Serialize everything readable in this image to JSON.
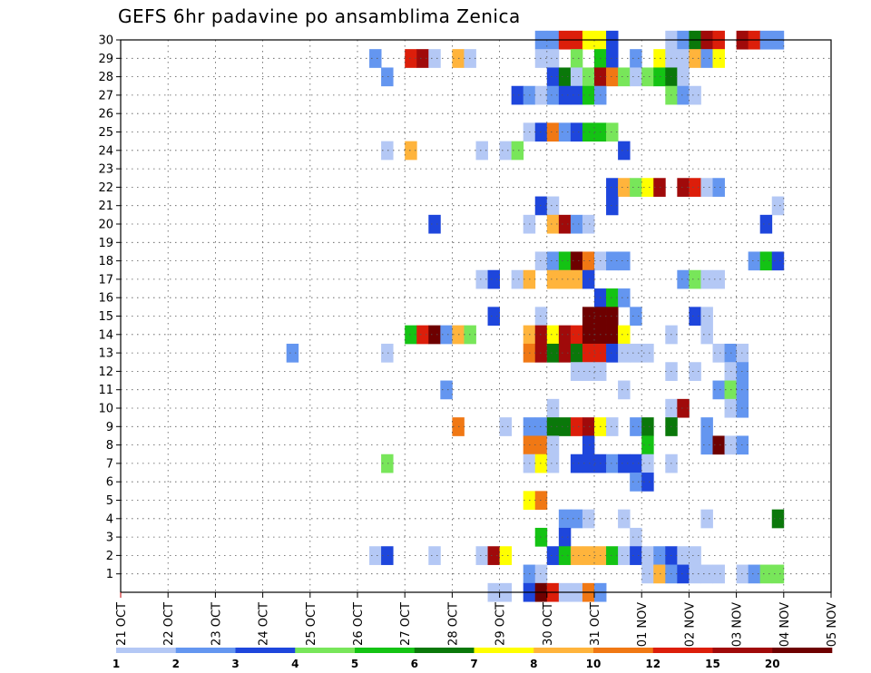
{
  "chart_data": {
    "type": "heatmap",
    "title": "GEFS 6hr padavine po ansamblima Zenica",
    "x_ticks": [
      "21 OCT",
      "22 OCT",
      "23 OCT",
      "24 OCT",
      "25 OCT",
      "26 OCT",
      "27 OCT",
      "28 OCT",
      "29 OCT",
      "30 OCT",
      "31 OCT",
      "01 NOV",
      "02 NOV",
      "03 NOV",
      "04 NOV",
      "05 NOV"
    ],
    "x_range": [
      "21 OCT",
      "05 NOV"
    ],
    "time_step_hours": 6,
    "y_ticks": [
      1,
      2,
      3,
      4,
      5,
      6,
      7,
      8,
      9,
      10,
      11,
      12,
      13,
      14,
      15,
      16,
      17,
      18,
      19,
      20,
      21,
      22,
      23,
      24,
      25,
      26,
      27,
      28,
      29,
      30
    ],
    "y_range": [
      0,
      30
    ],
    "grid": true,
    "legend_position": "bottom",
    "colorbar": {
      "labels": [
        "1",
        "2",
        "3",
        "4",
        "5",
        "6",
        "7",
        "8",
        "10",
        "12",
        "15",
        "20"
      ],
      "colors": [
        "#b4c8f5",
        "#6496f0",
        "#1e46dc",
        "#78e65a",
        "#14c314",
        "#0a780a",
        "#ffff00",
        "#ffb43c",
        "#f07814",
        "#dc1e0a",
        "#a00a0a",
        "#6e0000"
      ]
    },
    "members": [
      {
        "member": 30,
        "cells": [
          [
            35,
            1
          ],
          [
            36,
            1
          ],
          [
            37,
            9
          ],
          [
            38,
            9
          ],
          [
            39,
            6
          ],
          [
            40,
            6
          ],
          [
            41,
            2
          ],
          [
            46,
            0
          ],
          [
            47,
            1
          ],
          [
            48,
            5
          ],
          [
            49,
            10
          ],
          [
            50,
            9
          ],
          [
            52,
            10
          ],
          [
            53,
            9
          ],
          [
            54,
            1
          ],
          [
            55,
            1
          ]
        ]
      },
      {
        "member": 29,
        "cells": [
          [
            21,
            1
          ],
          [
            24,
            9
          ],
          [
            25,
            10
          ],
          [
            26,
            0
          ],
          [
            28,
            7
          ],
          [
            29,
            0
          ],
          [
            35,
            0
          ],
          [
            36,
            0
          ],
          [
            38,
            3
          ],
          [
            40,
            4
          ],
          [
            41,
            2
          ],
          [
            43,
            1
          ],
          [
            45,
            6
          ],
          [
            46,
            0
          ],
          [
            47,
            0
          ],
          [
            48,
            7
          ],
          [
            49,
            1
          ],
          [
            50,
            6
          ]
        ]
      },
      {
        "member": 28,
        "cells": [
          [
            22,
            1
          ],
          [
            36,
            2
          ],
          [
            37,
            5
          ],
          [
            38,
            0
          ],
          [
            39,
            3
          ],
          [
            40,
            10
          ],
          [
            41,
            8
          ],
          [
            42,
            3
          ],
          [
            43,
            0
          ],
          [
            44,
            3
          ],
          [
            45,
            4
          ],
          [
            46,
            5
          ],
          [
            47,
            0
          ]
        ]
      },
      {
        "member": 27,
        "cells": [
          [
            33,
            2
          ],
          [
            34,
            1
          ],
          [
            35,
            0
          ],
          [
            36,
            1
          ],
          [
            37,
            2
          ],
          [
            38,
            2
          ],
          [
            39,
            4
          ],
          [
            40,
            1
          ],
          [
            46,
            3
          ],
          [
            47,
            1
          ],
          [
            48,
            0
          ]
        ]
      },
      {
        "member": 25,
        "cells": [
          [
            34,
            0
          ],
          [
            35,
            2
          ],
          [
            36,
            8
          ],
          [
            37,
            1
          ],
          [
            38,
            2
          ],
          [
            39,
            4
          ],
          [
            40,
            4
          ],
          [
            41,
            3
          ]
        ]
      },
      {
        "member": 24,
        "cells": [
          [
            22,
            0
          ],
          [
            24,
            7
          ],
          [
            30,
            0
          ],
          [
            32,
            0
          ],
          [
            33,
            3
          ],
          [
            42,
            2
          ]
        ]
      },
      {
        "member": 22,
        "cells": [
          [
            41,
            2
          ],
          [
            42,
            7
          ],
          [
            43,
            3
          ],
          [
            44,
            6
          ],
          [
            45,
            10
          ],
          [
            47,
            10
          ],
          [
            48,
            9
          ],
          [
            49,
            0
          ],
          [
            50,
            1
          ]
        ]
      },
      {
        "member": 21,
        "cells": [
          [
            35,
            2
          ],
          [
            36,
            0
          ],
          [
            41,
            2
          ],
          [
            55,
            0
          ]
        ]
      },
      {
        "member": 20,
        "cells": [
          [
            26,
            2
          ],
          [
            34,
            0
          ],
          [
            36,
            7
          ],
          [
            37,
            10
          ],
          [
            38,
            1
          ],
          [
            39,
            0
          ],
          [
            54,
            2
          ]
        ]
      },
      {
        "member": 18,
        "cells": [
          [
            35,
            0
          ],
          [
            36,
            1
          ],
          [
            37,
            4
          ],
          [
            38,
            11
          ],
          [
            39,
            8
          ],
          [
            40,
            0
          ],
          [
            41,
            1
          ],
          [
            42,
            1
          ],
          [
            53,
            1
          ],
          [
            54,
            4
          ],
          [
            55,
            2
          ]
        ]
      },
      {
        "member": 17,
        "cells": [
          [
            30,
            0
          ],
          [
            31,
            2
          ],
          [
            33,
            0
          ],
          [
            34,
            7
          ],
          [
            36,
            7
          ],
          [
            37,
            7
          ],
          [
            38,
            7
          ],
          [
            39,
            2
          ],
          [
            47,
            1
          ],
          [
            48,
            3
          ],
          [
            49,
            0
          ],
          [
            50,
            0
          ]
        ]
      },
      {
        "member": 16,
        "cells": [
          [
            40,
            2
          ],
          [
            41,
            4
          ],
          [
            42,
            1
          ]
        ]
      },
      {
        "member": 15,
        "cells": [
          [
            31,
            2
          ],
          [
            35,
            0
          ],
          [
            39,
            11
          ],
          [
            40,
            11
          ],
          [
            41,
            11
          ],
          [
            43,
            1
          ],
          [
            48,
            2
          ],
          [
            49,
            0
          ]
        ]
      },
      {
        "member": 14,
        "cells": [
          [
            24,
            4
          ],
          [
            25,
            9
          ],
          [
            26,
            11
          ],
          [
            27,
            1
          ],
          [
            28,
            7
          ],
          [
            29,
            3
          ],
          [
            34,
            7
          ],
          [
            35,
            10
          ],
          [
            36,
            6
          ],
          [
            37,
            10
          ],
          [
            38,
            9
          ],
          [
            39,
            11
          ],
          [
            40,
            11
          ],
          [
            41,
            11
          ],
          [
            42,
            6
          ],
          [
            46,
            0
          ],
          [
            49,
            0
          ]
        ]
      },
      {
        "member": 13,
        "cells": [
          [
            14,
            1
          ],
          [
            22,
            0
          ],
          [
            34,
            8
          ],
          [
            35,
            10
          ],
          [
            36,
            5
          ],
          [
            37,
            10
          ],
          [
            38,
            5
          ],
          [
            39,
            9
          ],
          [
            40,
            9
          ],
          [
            41,
            2
          ],
          [
            42,
            0
          ],
          [
            43,
            0
          ],
          [
            44,
            0
          ],
          [
            50,
            0
          ],
          [
            51,
            1
          ],
          [
            52,
            0
          ]
        ]
      },
      {
        "member": 12,
        "cells": [
          [
            38,
            0
          ],
          [
            39,
            0
          ],
          [
            40,
            0
          ],
          [
            46,
            0
          ],
          [
            48,
            0
          ],
          [
            51,
            0
          ],
          [
            52,
            1
          ]
        ]
      },
      {
        "member": 11,
        "cells": [
          [
            27,
            1
          ],
          [
            42,
            0
          ],
          [
            50,
            1
          ],
          [
            51,
            3
          ],
          [
            52,
            1
          ]
        ]
      },
      {
        "member": 10,
        "cells": [
          [
            36,
            0
          ],
          [
            46,
            0
          ],
          [
            47,
            10
          ],
          [
            51,
            0
          ],
          [
            52,
            1
          ]
        ]
      },
      {
        "member": 9,
        "cells": [
          [
            28,
            8
          ],
          [
            32,
            0
          ],
          [
            34,
            1
          ],
          [
            35,
            1
          ],
          [
            36,
            5
          ],
          [
            37,
            5
          ],
          [
            38,
            9
          ],
          [
            39,
            10
          ],
          [
            40,
            6
          ],
          [
            41,
            0
          ],
          [
            43,
            1
          ],
          [
            44,
            5
          ],
          [
            46,
            5
          ],
          [
            49,
            1
          ]
        ]
      },
      {
        "member": 8,
        "cells": [
          [
            34,
            8
          ],
          [
            35,
            8
          ],
          [
            36,
            0
          ],
          [
            39,
            2
          ],
          [
            44,
            4
          ],
          [
            49,
            1
          ],
          [
            50,
            11
          ],
          [
            51,
            0
          ],
          [
            52,
            1
          ]
        ]
      },
      {
        "member": 7,
        "cells": [
          [
            22,
            3
          ],
          [
            34,
            0
          ],
          [
            35,
            6
          ],
          [
            36,
            0
          ],
          [
            38,
            2
          ],
          [
            39,
            2
          ],
          [
            40,
            2
          ],
          [
            41,
            1
          ],
          [
            42,
            2
          ],
          [
            43,
            2
          ],
          [
            44,
            0
          ],
          [
            46,
            0
          ]
        ]
      },
      {
        "member": 6,
        "cells": [
          [
            43,
            1
          ],
          [
            44,
            2
          ]
        ]
      },
      {
        "member": 5,
        "cells": [
          [
            34,
            6
          ],
          [
            35,
            8
          ]
        ]
      },
      {
        "member": 4,
        "cells": [
          [
            37,
            1
          ],
          [
            38,
            1
          ],
          [
            39,
            0
          ],
          [
            42,
            0
          ],
          [
            49,
            0
          ],
          [
            55,
            5
          ]
        ]
      },
      {
        "member": 3,
        "cells": [
          [
            35,
            4
          ],
          [
            37,
            2
          ],
          [
            43,
            0
          ]
        ]
      },
      {
        "member": 2,
        "cells": [
          [
            21,
            0
          ],
          [
            22,
            2
          ],
          [
            26,
            0
          ],
          [
            30,
            0
          ],
          [
            31,
            10
          ],
          [
            32,
            6
          ],
          [
            36,
            2
          ],
          [
            37,
            4
          ],
          [
            38,
            7
          ],
          [
            39,
            7
          ],
          [
            40,
            7
          ],
          [
            41,
            4
          ],
          [
            42,
            0
          ],
          [
            43,
            2
          ],
          [
            44,
            0
          ],
          [
            45,
            1
          ],
          [
            46,
            2
          ],
          [
            47,
            0
          ],
          [
            48,
            0
          ]
        ]
      },
      {
        "member": 1,
        "cells": [
          [
            34,
            1
          ],
          [
            35,
            0
          ],
          [
            44,
            0
          ],
          [
            45,
            7
          ],
          [
            46,
            1
          ],
          [
            47,
            2
          ],
          [
            48,
            0
          ],
          [
            49,
            0
          ],
          [
            50,
            0
          ],
          [
            52,
            0
          ],
          [
            53,
            1
          ],
          [
            54,
            3
          ],
          [
            55,
            3
          ]
        ]
      },
      {
        "member": 0,
        "cells": [
          [
            31,
            0
          ],
          [
            32,
            0
          ],
          [
            34,
            2
          ],
          [
            35,
            11
          ],
          [
            36,
            9
          ],
          [
            37,
            0
          ],
          [
            38,
            0
          ],
          [
            39,
            8
          ],
          [
            40,
            1
          ]
        ]
      }
    ]
  }
}
